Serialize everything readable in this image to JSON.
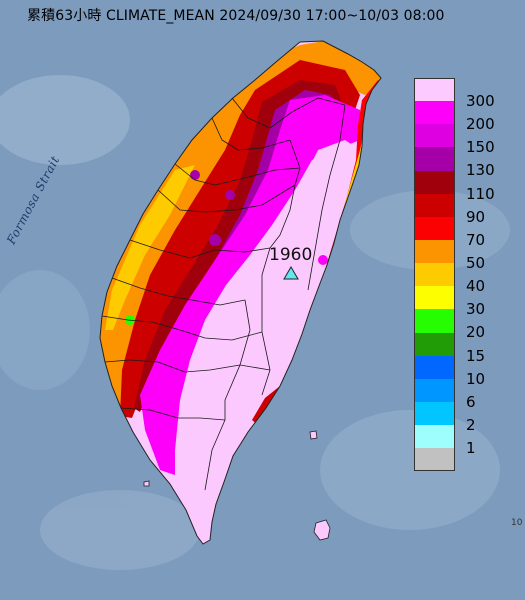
{
  "title": "累積63小時 CLIMATE_MEAN 2024/09/30 17:00~10/03 08:00",
  "sea_label": "Formosa Strait",
  "peak": {
    "value": "1960",
    "marker_icon": "triangle-peak-marker"
  },
  "corner_label": "10",
  "legend": {
    "labels": [
      "300",
      "200",
      "150",
      "130",
      "110",
      "90",
      "70",
      "50",
      "40",
      "30",
      "20",
      "15",
      "10",
      "6",
      "2",
      "1"
    ],
    "colors": [
      "#fdcaff",
      "#fc00f9",
      "#de00e0",
      "#a500a8",
      "#a0000b",
      "#cd0000",
      "#fc0101",
      "#fc9300",
      "#fdcb00",
      "#fdfe00",
      "#26fd00",
      "#219c06",
      "#0067ff",
      "#0096ff",
      "#00c5ff",
      "#9efefe",
      "#c1c1c1"
    ]
  },
  "colors": {
    "sea": "#7d9bbd",
    "land": "#fbc9fe",
    "county_border": "#1a1a1a",
    "peak_marker": "#63e7ef"
  }
}
